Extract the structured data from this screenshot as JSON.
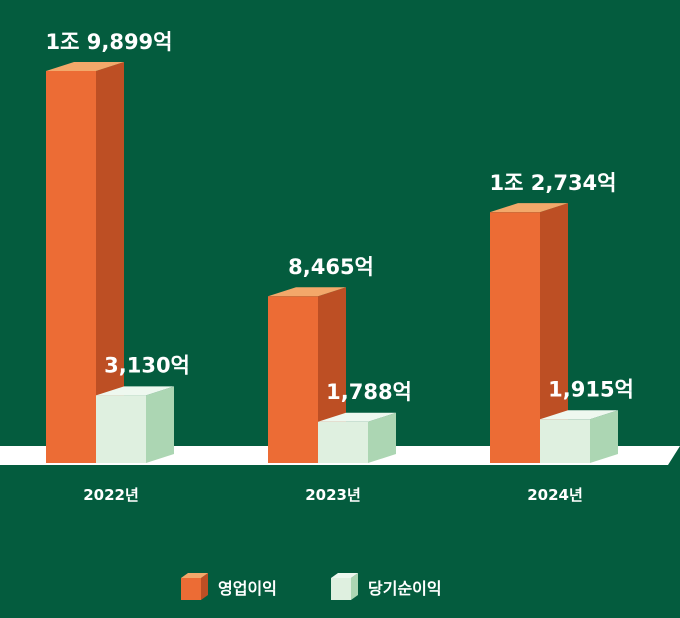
{
  "chart_data": {
    "type": "bar",
    "categories": [
      "2022년",
      "2023년",
      "2024년"
    ],
    "series": [
      {
        "name": "영업이익",
        "values": [
          19899,
          8465,
          12734
        ],
        "value_labels": [
          "1조 9,899억",
          "8,465억",
          "1조 2,734억"
        ]
      },
      {
        "name": "당기순이익",
        "values": [
          3130,
          1788,
          1915
        ],
        "value_labels": [
          "3,130억",
          "1,788억",
          "1,915억"
        ]
      }
    ],
    "unit": "억",
    "grid": false,
    "legend_position": "bottom-center"
  },
  "colors": {
    "background": "#045c3e",
    "operating_front": "#ec6c35",
    "operating_side": "#bd4f24",
    "operating_top": "#f3a86a",
    "net_front": "#dff0e0",
    "net_side": "#acd6b3",
    "net_top": "#eef8ef",
    "baseline": "#ffffff",
    "text": "#ffffff"
  }
}
